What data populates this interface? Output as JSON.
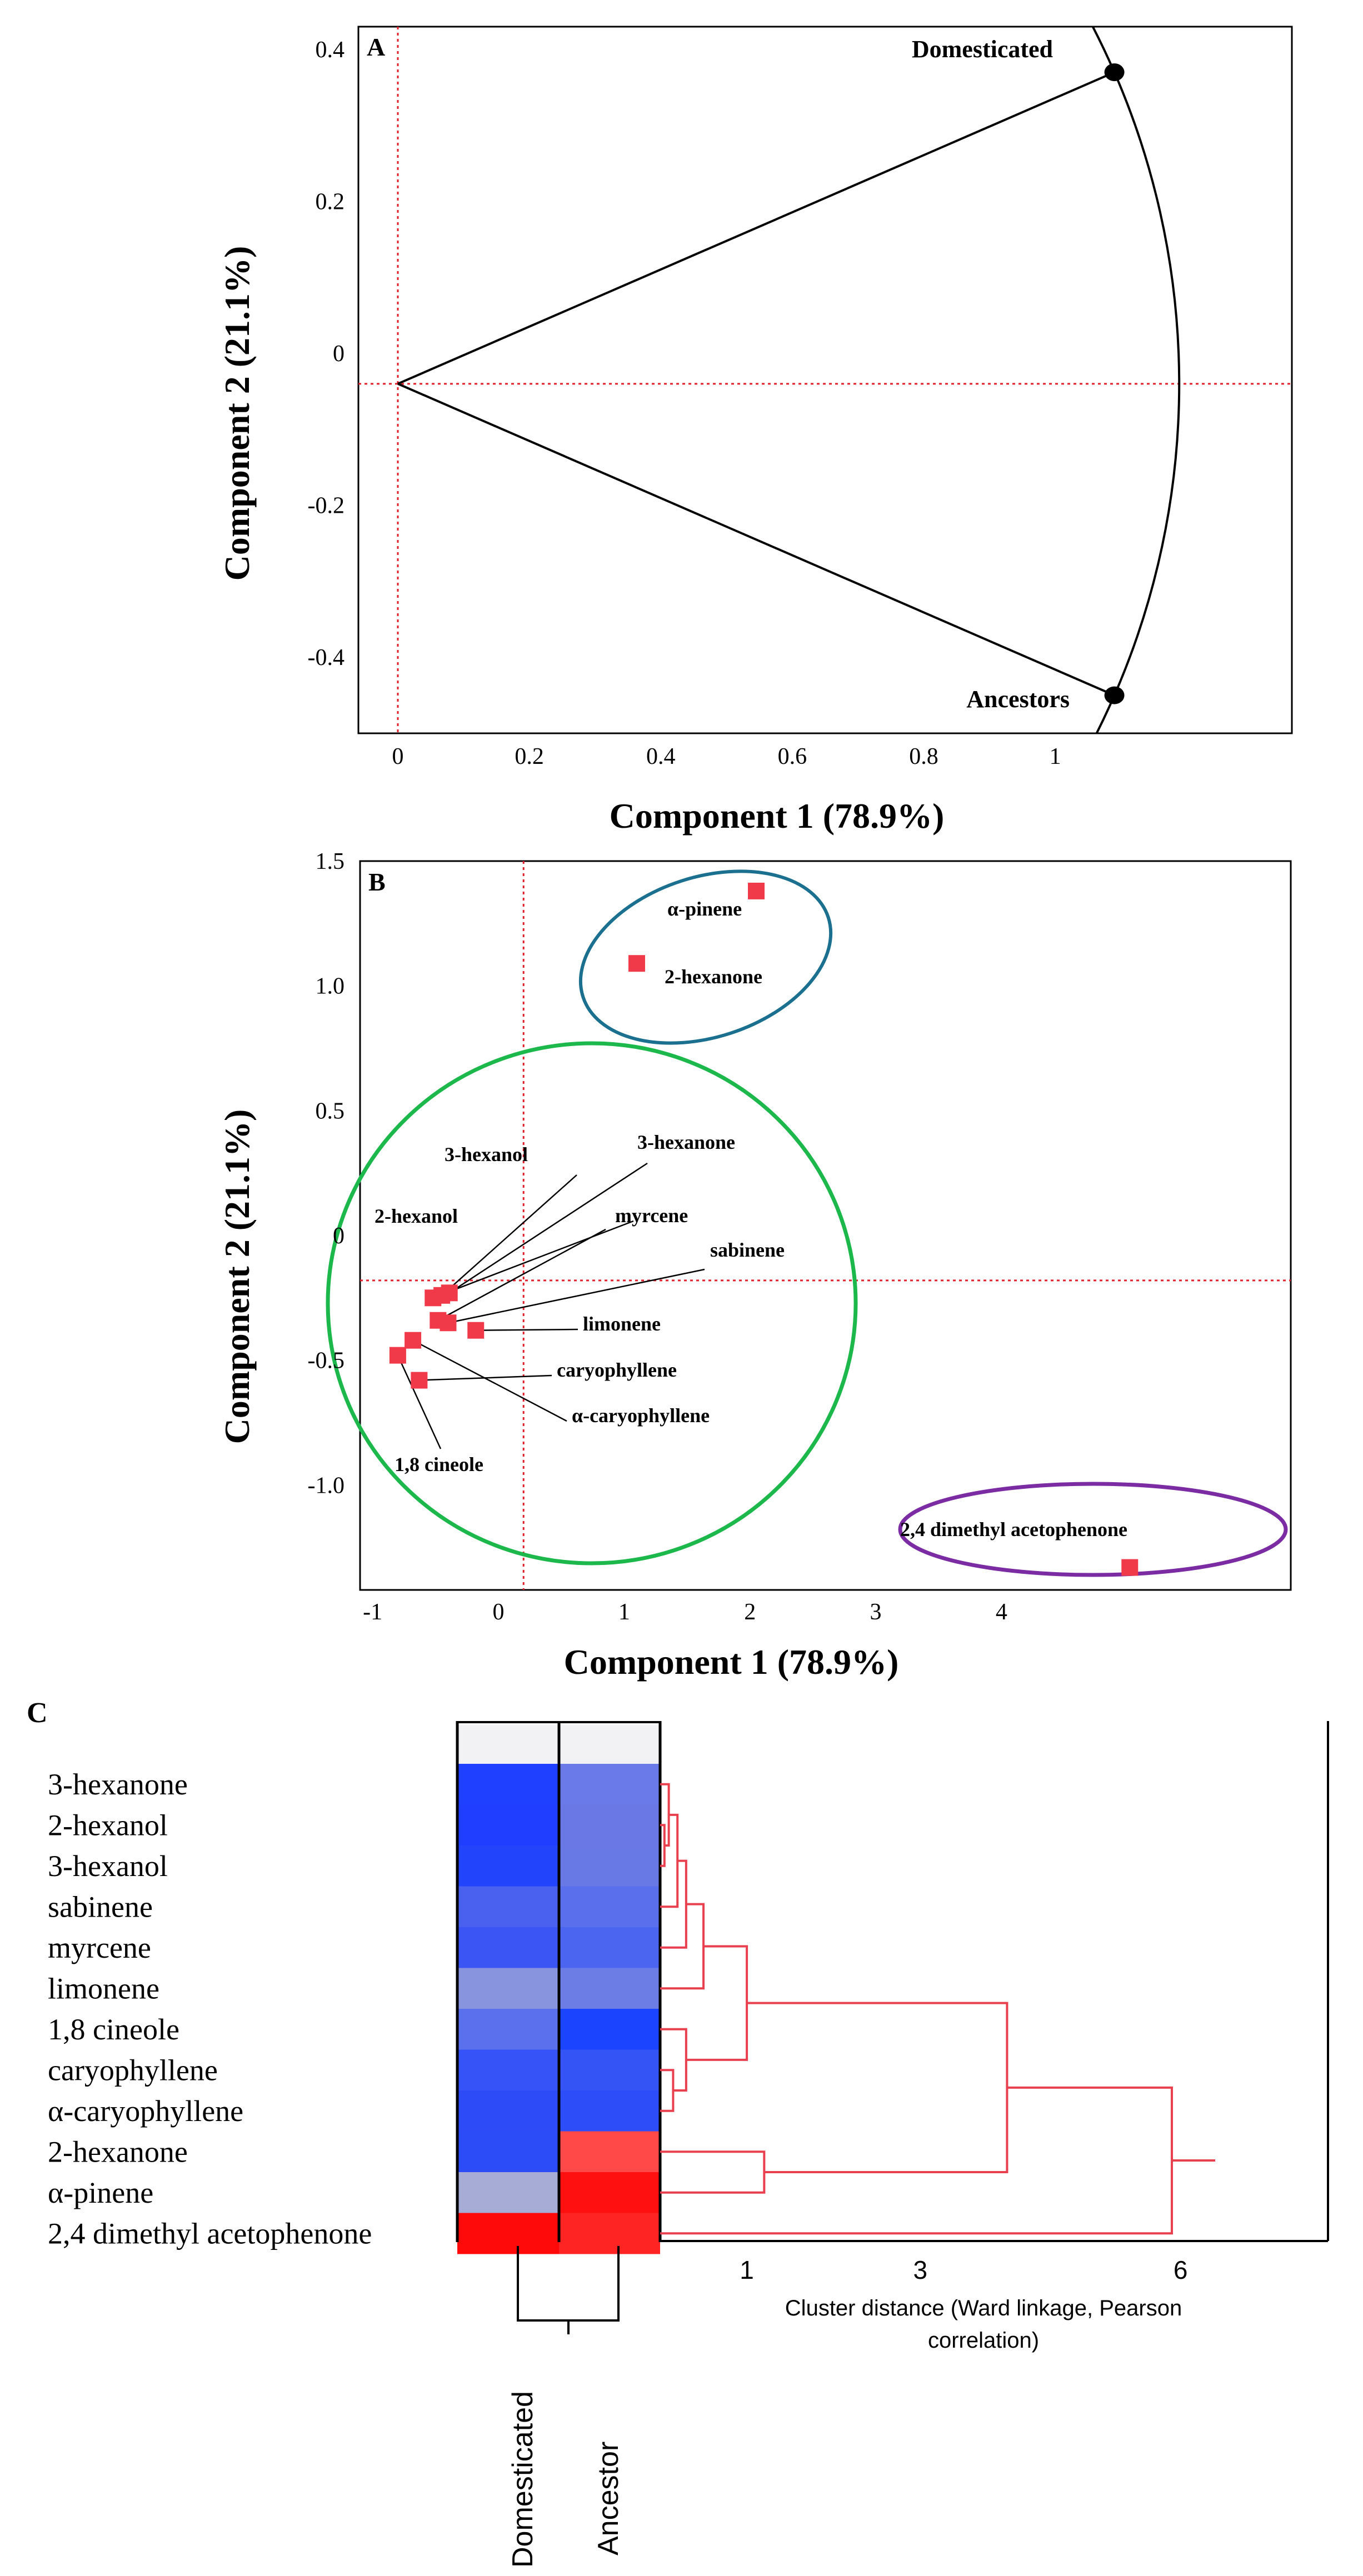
{
  "chart_data": [
    {
      "panel": "A",
      "type": "scatter",
      "xlabel": "Component 1 (78.9%)",
      "ylabel": "Component 2 (21.1%)",
      "x_ticks": [
        "0",
        "0.2",
        "0.4",
        "0.6",
        "0.8",
        "1"
      ],
      "x_tick_values": [
        0,
        0.2,
        0.4,
        0.6,
        0.8,
        1
      ],
      "y_ticks": [
        "0.4",
        "0.2",
        "0",
        "-0.2",
        "-0.4"
      ],
      "y_tick_values": [
        0.4,
        0.2,
        0,
        -0.2,
        -0.4
      ],
      "xlim": [
        -0.06,
        1.36
      ],
      "ylim": [
        -0.5,
        0.43
      ],
      "reference_lines": {
        "x": 0,
        "y": -0.04
      },
      "origin": [
        0,
        -0.04
      ],
      "arc_center": [
        0,
        -0.04
      ],
      "grid": false,
      "points": [
        {
          "label": "Domesticated",
          "x": 1.09,
          "y": 0.37
        },
        {
          "label": "Ancestors",
          "x": 1.09,
          "y": -0.45
        }
      ]
    },
    {
      "panel": "B",
      "type": "scatter",
      "xlabel": "Component 1 (78.9%)",
      "ylabel": "Component 2 (21.1%)",
      "x_ticks": [
        "-1",
        "0",
        "1",
        "2",
        "3",
        "4"
      ],
      "x_tick_values": [
        -1,
        0,
        1,
        2,
        3,
        4
      ],
      "y_ticks": [
        "1.5",
        "1.0",
        "0.5",
        "0",
        "-0.5",
        "-1.0"
      ],
      "y_tick_values": [
        1.5,
        1.0,
        0.5,
        0,
        -0.5,
        -1.0
      ],
      "xlim": [
        -1.1,
        6.3
      ],
      "ylim": [
        -1.42,
        1.5
      ],
      "reference_lines": {
        "x": 0.2,
        "y": -0.18
      },
      "grid": false,
      "points": [
        {
          "label": "α-pinene",
          "x": 2.05,
          "y": 1.38
        },
        {
          "label": "2-hexanone",
          "x": 1.1,
          "y": 1.09
        },
        {
          "label": "3-hexanol",
          "x": -0.45,
          "y": -0.24
        },
        {
          "label": "3-hexanone",
          "x": -0.39,
          "y": -0.23
        },
        {
          "label": "2-hexanol",
          "x": -0.52,
          "y": -0.25
        },
        {
          "label": "myrcene",
          "x": -0.48,
          "y": -0.34
        },
        {
          "label": "sabinene",
          "x": -0.4,
          "y": -0.35
        },
        {
          "label": "limonene",
          "x": -0.18,
          "y": -0.38
        },
        {
          "label": "caryophyllene",
          "x": -0.63,
          "y": -0.58
        },
        {
          "label": "α-caryophyllene",
          "x": -0.68,
          "y": -0.42
        },
        {
          "label": "1,8 cineole",
          "x": -0.8,
          "y": -0.48
        },
        {
          "label": "2,4 dimethyl acetophenone",
          "x": 5.02,
          "y": -1.33
        }
      ],
      "clusters": [
        {
          "color": "#1b6f8f",
          "members": [
            "α-pinene",
            "2-hexanone"
          ]
        },
        {
          "color": "#1db84c",
          "members": [
            "3-hexanone",
            "2-hexanol",
            "3-hexanol",
            "sabinene",
            "myrcene",
            "limonene",
            "1,8 cineole",
            "caryophyllene",
            "α-caryophyllene"
          ]
        },
        {
          "color": "#7b2ca3",
          "members": [
            "2,4 dimethyl acetophenone"
          ]
        }
      ]
    },
    {
      "panel": "C",
      "type": "heatmap",
      "rows": [
        "3-hexanone",
        "2-hexanol",
        "3-hexanol",
        "sabinene",
        "myrcene",
        "limonene",
        "1,8 cineole",
        "caryophyllene",
        "α-caryophyllene",
        "2-hexanone",
        "α-pinene",
        "2,4 dimethyl acetophenone"
      ],
      "columns": [
        "Domesticated",
        "Ancestor"
      ],
      "cell_colors": [
        [
          "#2040ff",
          "#6a7ae8"
        ],
        [
          "#1f3eff",
          "#6a78e6"
        ],
        [
          "#2244fb",
          "#6878e4"
        ],
        [
          "#4a60ee",
          "#5a6fec"
        ],
        [
          "#3a55f4",
          "#4c65f1"
        ],
        [
          "#8894de",
          "#6c7de6"
        ],
        [
          "#5a70ec",
          "#1a44fd"
        ],
        [
          "#3553f6",
          "#3454f6"
        ],
        [
          "#2d4cf8",
          "#2c4df7"
        ],
        [
          "#2c4cf8",
          "#ff4848"
        ],
        [
          "#a6acd6",
          "#ff1010"
        ],
        [
          "#ff0a0a",
          "#ff2424"
        ]
      ],
      "dendrogram": {
        "linkage": "Ward",
        "distance": "Pearson correlation",
        "x_ticks": [
          "1",
          "3",
          "6"
        ],
        "x_tick_values": [
          1,
          3,
          6
        ],
        "xlim": [
          0,
          7.7
        ],
        "merges": [
          {
            "a": 1,
            "b": 2,
            "d": 0.05
          },
          {
            "a": 0,
            "b": 12,
            "d": 0.1
          },
          {
            "a": 13,
            "b": 3,
            "d": 0.2
          },
          {
            "a": 14,
            "b": 4,
            "d": 0.3
          },
          {
            "a": 15,
            "b": 5,
            "d": 0.5
          },
          {
            "a": 7,
            "b": 8,
            "d": 0.15
          },
          {
            "a": 6,
            "b": 17,
            "d": 0.3
          },
          {
            "a": 16,
            "b": 18,
            "d": 1.0
          },
          {
            "a": 9,
            "b": 10,
            "d": 1.2
          },
          {
            "a": 19,
            "b": 20,
            "d": 4.0
          },
          {
            "a": 21,
            "b": 11,
            "d": 5.9
          },
          {
            "a": 22,
            "d": 6.4
          }
        ]
      },
      "xlabel": "Cluster distance (Ward linkage, Pearson correlation)"
    }
  ],
  "panels": {
    "a": {
      "letter": "A",
      "xlabel": "Component 1 (78.9%)",
      "ylabel": "Component 2 (21.1%)",
      "label_domesticated": "Domesticated",
      "label_ancestors": "Ancestors"
    },
    "b": {
      "letter": "B",
      "xlabel": "Component 1 (78.9%)",
      "ylabel": "Component 2 (21.1%)"
    },
    "c": {
      "letter": "C",
      "axis_caption_line1": "Cluster distance (Ward linkage, Pearson",
      "axis_caption_line2": "correlation)",
      "col_domesticated": "Domesticated",
      "col_ancestor": "Ancestor"
    }
  },
  "colors": {
    "refline": "#e0202a",
    "marker_b": "#f03a4a",
    "dendrogram": "#e8404e",
    "cluster_blue": "#1b6f8f",
    "cluster_green": "#1db84c",
    "cluster_purple": "#7b2ca3"
  }
}
